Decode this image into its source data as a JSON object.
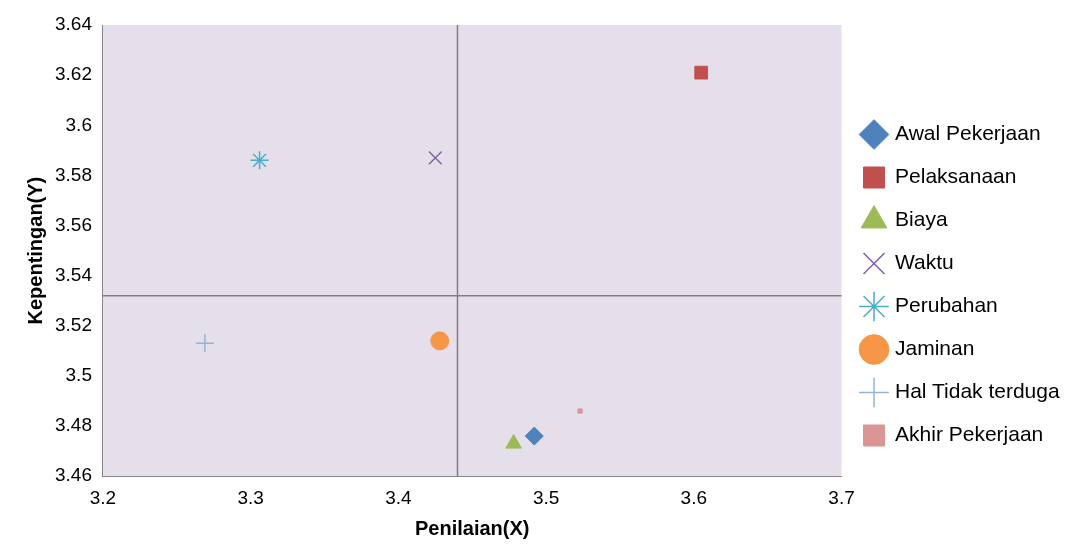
{
  "chart_data": {
    "type": "scatter",
    "xlabel": "Penilaian(X)",
    "ylabel": "Kepentingan(Y)",
    "xlim": [
      3.2,
      3.7
    ],
    "xticks": [
      3.2,
      3.3,
      3.4,
      3.5,
      3.6,
      3.7
    ],
    "ylim": [
      3.46,
      3.64
    ],
    "yticks": [
      3.46,
      3.48,
      3.5,
      3.52,
      3.54,
      3.56,
      3.58,
      3.6,
      3.62,
      3.64
    ],
    "grid": false,
    "legend": "right",
    "ref_lines": [
      {
        "axis": "x",
        "value": 3.44,
        "color": "#7f7f7f"
      },
      {
        "axis": "y",
        "value": 3.532,
        "color": "#7f7f7f"
      }
    ],
    "series": [
      {
        "name": "Awal Pekerjaan",
        "color": "#4f81bd",
        "marker": "diamond",
        "x": [
          3.492
        ],
        "values": [
          3.476
        ]
      },
      {
        "name": "Pelaksanaan",
        "color": "#c0504d",
        "marker": "square",
        "x": [
          3.605
        ],
        "values": [
          3.621
        ]
      },
      {
        "name": "Biaya",
        "color": "#9bbb59",
        "marker": "triangle",
        "x": [
          3.478
        ],
        "values": [
          3.473
        ]
      },
      {
        "name": "Waktu",
        "color": "#8064a2",
        "marker": "cross",
        "x": [
          3.425
        ],
        "values": [
          3.587
        ]
      },
      {
        "name": "Perubahan",
        "color": "#4bacc6",
        "marker": "cross",
        "x": [
          3.306
        ],
        "values": [
          3.586
        ]
      },
      {
        "name": "Jaminan",
        "color": "#f79646",
        "marker": "circle",
        "x": [
          3.428
        ],
        "values": [
          3.514
        ]
      },
      {
        "name": "Hal Tidak terduga",
        "color": "#95b3d7",
        "marker": "cross",
        "x": [
          3.269
        ],
        "values": [
          3.513
        ]
      },
      {
        "name": "Akhir Pekerjaan",
        "color": "#d99694",
        "marker": "square",
        "x": [
          3.523
        ],
        "values": [
          3.486
        ]
      }
    ]
  }
}
